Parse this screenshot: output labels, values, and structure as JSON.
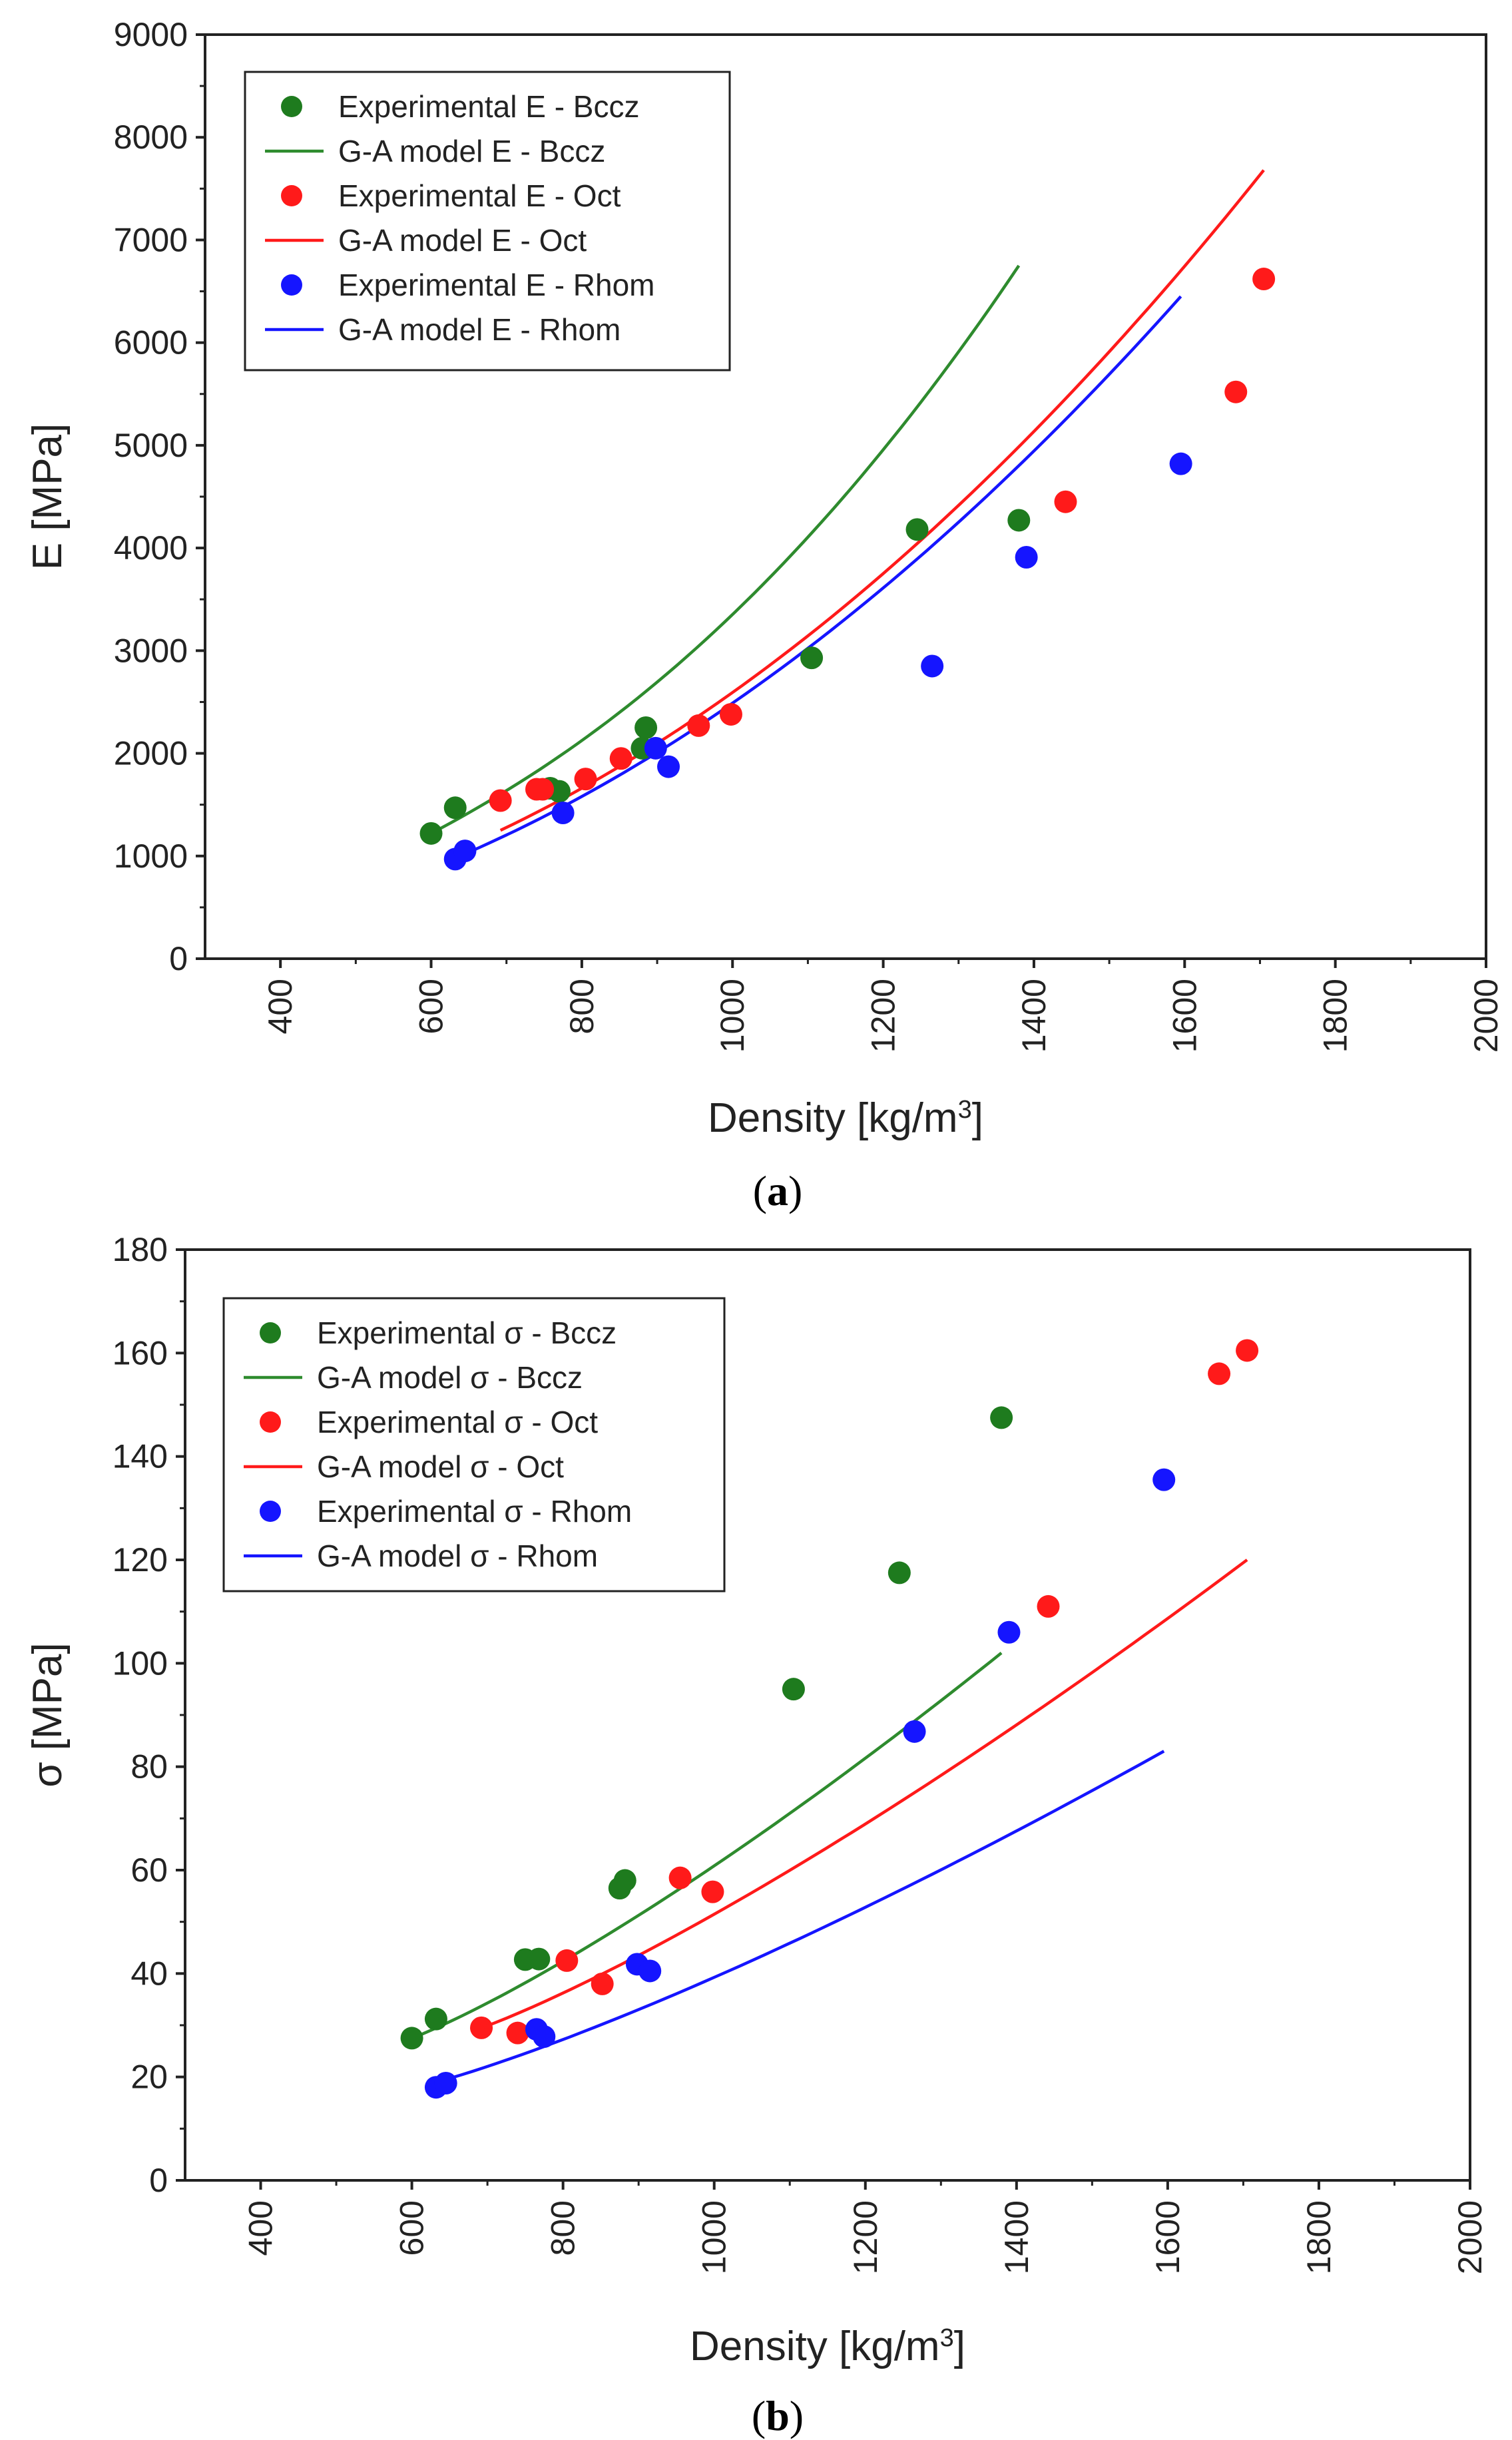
{
  "chart_data": [
    {
      "type": "scatter",
      "panel": "a",
      "caption_open": "(",
      "caption_letter": "a",
      "caption_close": ")",
      "xlabel": "Density [kg/m",
      "xlabel_sup": "3",
      "xlabel_close": "]",
      "ylabel": "E [MPa]",
      "xlim": [
        300,
        2000
      ],
      "ylim": [
        0,
        9000
      ],
      "xticks": [
        400,
        600,
        800,
        1000,
        1200,
        1400,
        1600,
        1800,
        2000
      ],
      "yticks": [
        0,
        1000,
        2000,
        3000,
        4000,
        5000,
        6000,
        7000,
        8000,
        9000
      ],
      "legend_position": "top-left",
      "series": [
        {
          "name": "Experimental E - Bccz",
          "kind": "points",
          "color": "#1e7b1e",
          "points": [
            [
              600,
              1220
            ],
            [
              632,
              1470
            ],
            [
              758,
              1660
            ],
            [
              770,
              1630
            ],
            [
              880,
              2050
            ],
            [
              885,
              2250
            ],
            [
              1105,
              2930
            ],
            [
              1245,
              4180
            ],
            [
              1380,
              4270
            ]
          ]
        },
        {
          "name": "G-A model E - Bccz",
          "kind": "line",
          "color": "#2e8b2e",
          "x_start": 600,
          "x_end": 1380,
          "y_start": 1220,
          "y_end": 6750,
          "exponent": 2.2
        },
        {
          "name": "Experimental E - Oct",
          "kind": "points",
          "color": "#ff1a1a",
          "points": [
            [
              692,
              1540
            ],
            [
              740,
              1650
            ],
            [
              748,
              1650
            ],
            [
              805,
              1750
            ],
            [
              852,
              1950
            ],
            [
              955,
              2270
            ],
            [
              998,
              2380
            ],
            [
              1442,
              4450
            ],
            [
              1668,
              5520
            ],
            [
              1705,
              6620
            ]
          ]
        },
        {
          "name": "G-A model E - Oct",
          "kind": "line",
          "color": "#ff1a1a",
          "x_start": 692,
          "x_end": 1705,
          "y_start": 1250,
          "y_end": 7680,
          "exponent": 2.0
        },
        {
          "name": "Experimental E - Rhom",
          "kind": "points",
          "color": "#1515ff",
          "points": [
            [
              632,
              970
            ],
            [
              645,
              1050
            ],
            [
              775,
              1420
            ],
            [
              898,
              2050
            ],
            [
              915,
              1870
            ],
            [
              1265,
              2850
            ],
            [
              1390,
              3910
            ],
            [
              1595,
              4820
            ]
          ]
        },
        {
          "name": "G-A model E - Rhom",
          "kind": "line",
          "color": "#1515ff",
          "x_start": 632,
          "x_end": 1595,
          "y_start": 980,
          "y_end": 6450,
          "exponent": 2.0
        }
      ]
    },
    {
      "type": "scatter",
      "panel": "b",
      "caption_open": "(",
      "caption_letter": "b",
      "caption_close": ")",
      "xlabel": "Density [kg/m",
      "xlabel_sup": "3",
      "xlabel_close": "]",
      "ylabel": "σ [MPa]",
      "xlim": [
        300,
        2000
      ],
      "ylim": [
        0,
        180
      ],
      "xticks": [
        400,
        600,
        800,
        1000,
        1200,
        1400,
        1600,
        1800,
        2000
      ],
      "yticks": [
        0,
        20,
        40,
        60,
        80,
        100,
        120,
        140,
        160,
        180
      ],
      "legend_position": "top-left",
      "series": [
        {
          "name": "Experimental σ - Bccz",
          "kind": "points",
          "color": "#1e7b1e",
          "points": [
            [
              600,
              27.5
            ],
            [
              632,
              31.2
            ],
            [
              750,
              42.7
            ],
            [
              768,
              42.8
            ],
            [
              875,
              56.5
            ],
            [
              882,
              58.0
            ],
            [
              1105,
              95.0
            ],
            [
              1245,
              117.5
            ],
            [
              1380,
              147.5
            ]
          ]
        },
        {
          "name": "G-A model σ - Bccz",
          "kind": "line",
          "color": "#2e8b2e",
          "x_start": 600,
          "x_end": 1380,
          "y_start": 27.5,
          "y_end": 102.0,
          "exponent": 1.5
        },
        {
          "name": "Experimental σ - Oct",
          "kind": "points",
          "color": "#ff1a1a",
          "points": [
            [
              692,
              29.5
            ],
            [
              740,
              28.5
            ],
            [
              805,
              42.5
            ],
            [
              852,
              38.0
            ],
            [
              955,
              58.5
            ],
            [
              998,
              55.8
            ],
            [
              1442,
              111.0
            ],
            [
              1668,
              156.0
            ],
            [
              1705,
              160.5
            ]
          ]
        },
        {
          "name": "G-A model σ - Oct",
          "kind": "line",
          "color": "#ff1a1a",
          "x_start": 692,
          "x_end": 1705,
          "y_start": 29.5,
          "y_end": 120.0,
          "exponent": 1.5
        },
        {
          "name": "Experimental σ - Rhom",
          "kind": "points",
          "color": "#1515ff",
          "points": [
            [
              632,
              18.0
            ],
            [
              645,
              18.8
            ],
            [
              765,
              29.2
            ],
            [
              775,
              27.8
            ],
            [
              898,
              41.8
            ],
            [
              915,
              40.5
            ],
            [
              1265,
              86.8
            ],
            [
              1390,
              106.0
            ],
            [
              1595,
              135.5
            ]
          ]
        },
        {
          "name": "G-A model σ - Rhom",
          "kind": "line",
          "color": "#1515ff",
          "x_start": 632,
          "x_end": 1595,
          "y_start": 19.0,
          "y_end": 83.0,
          "exponent": 1.5
        }
      ]
    }
  ]
}
